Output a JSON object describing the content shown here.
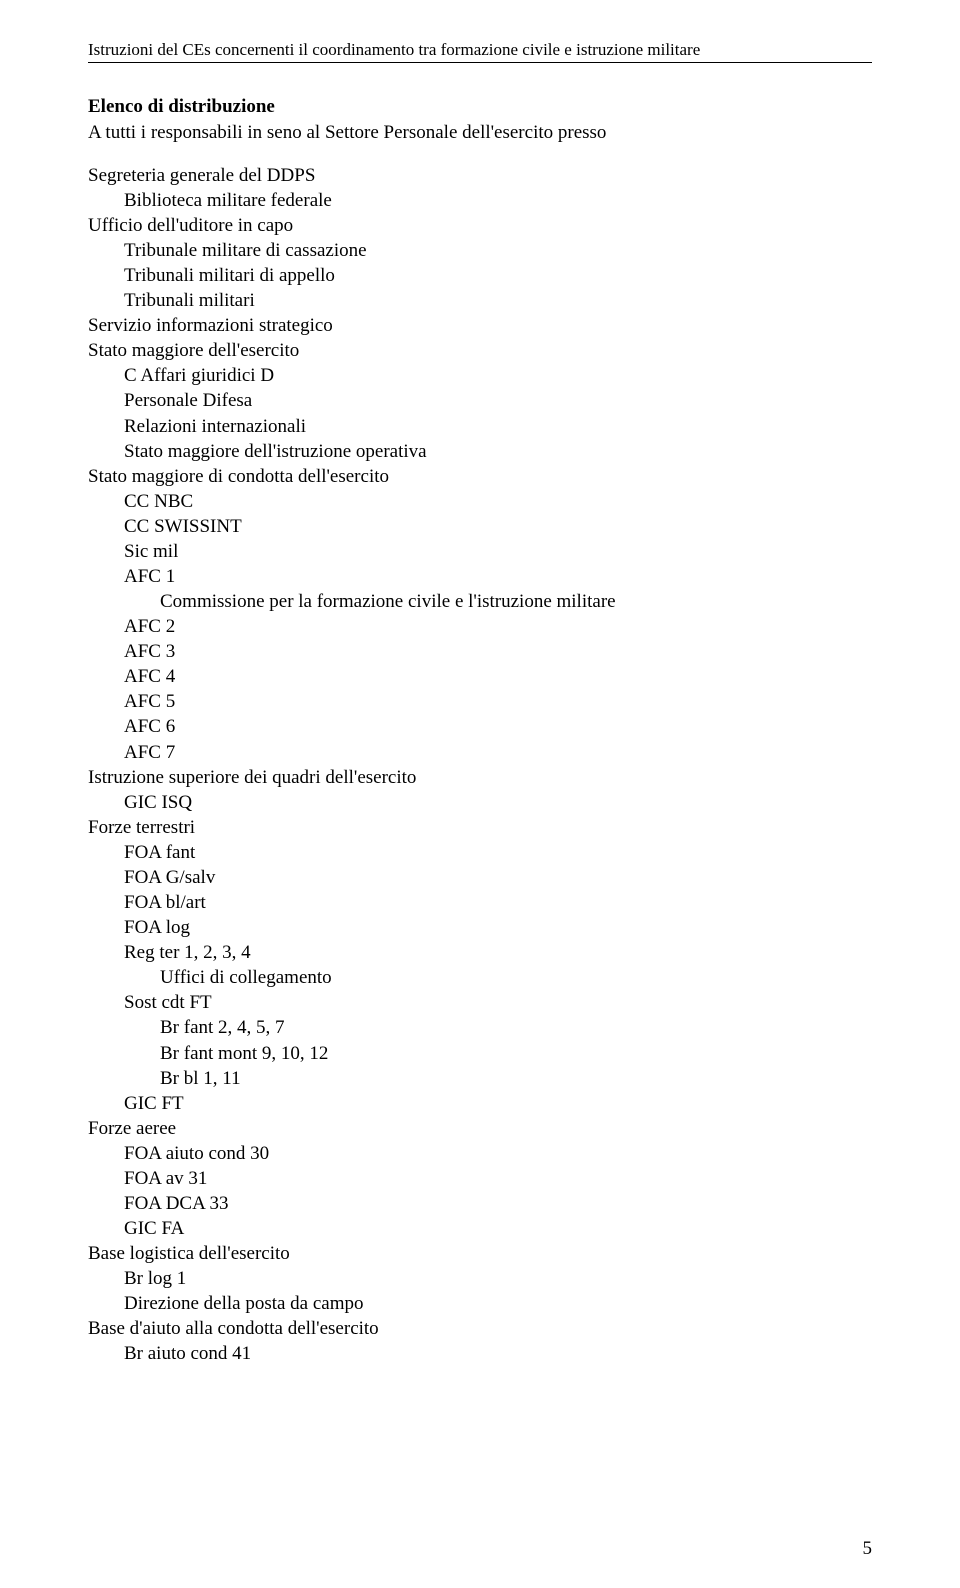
{
  "header": "Istruzioni del CEs concernenti il coordinamento tra formazione civile e istruzione militare",
  "title": "Elenco di distribuzione",
  "subtitle": "A tutti i responsabili in seno al Settore Personale dell'esercito presso",
  "lines": [
    {
      "text": "Segreteria generale del DDPS",
      "indent": 0
    },
    {
      "text": "Biblioteca militare federale",
      "indent": 1
    },
    {
      "text": "Ufficio dell'uditore in capo",
      "indent": 0
    },
    {
      "text": "Tribunale militare di cassazione",
      "indent": 1
    },
    {
      "text": "Tribunali militari di appello",
      "indent": 1
    },
    {
      "text": "Tribunali militari",
      "indent": 1
    },
    {
      "text": "Servizio informazioni strategico",
      "indent": 0
    },
    {
      "text": "Stato maggiore dell'esercito",
      "indent": 0
    },
    {
      "text": "C Affari giuridici D",
      "indent": 1
    },
    {
      "text": "Personale Difesa",
      "indent": 1
    },
    {
      "text": "Relazioni internazionali",
      "indent": 1
    },
    {
      "text": "Stato maggiore dell'istruzione operativa",
      "indent": 1
    },
    {
      "text": "Stato maggiore di condotta dell'esercito",
      "indent": 0
    },
    {
      "text": "CC NBC",
      "indent": 1
    },
    {
      "text": "CC SWISSINT",
      "indent": 1
    },
    {
      "text": "Sic mil",
      "indent": 1
    },
    {
      "text": "AFC 1",
      "indent": 1
    },
    {
      "text": "Commissione per la formazione civile e l'istruzione militare",
      "indent": 2
    },
    {
      "text": "AFC 2",
      "indent": 1
    },
    {
      "text": "AFC 3",
      "indent": 1
    },
    {
      "text": "AFC 4",
      "indent": 1
    },
    {
      "text": "AFC 5",
      "indent": 1
    },
    {
      "text": "AFC 6",
      "indent": 1
    },
    {
      "text": "AFC 7",
      "indent": 1
    },
    {
      "text": "Istruzione superiore dei quadri dell'esercito",
      "indent": 0
    },
    {
      "text": "GIC ISQ",
      "indent": 1
    },
    {
      "text": "Forze terrestri",
      "indent": 0
    },
    {
      "text": "FOA fant",
      "indent": 1
    },
    {
      "text": "FOA G/salv",
      "indent": 1
    },
    {
      "text": "FOA bl/art",
      "indent": 1
    },
    {
      "text": "FOA log",
      "indent": 1
    },
    {
      "text": "Reg ter 1, 2, 3, 4",
      "indent": 1
    },
    {
      "text": "Uffici di collegamento",
      "indent": 2
    },
    {
      "text": "Sost cdt FT",
      "indent": 1
    },
    {
      "text": "Br fant 2, 4, 5, 7",
      "indent": 2
    },
    {
      "text": "Br fant mont 9, 10, 12",
      "indent": 2
    },
    {
      "text": "Br bl 1, 11",
      "indent": 2
    },
    {
      "text": "GIC FT",
      "indent": 1
    },
    {
      "text": "Forze aeree",
      "indent": 0
    },
    {
      "text": "FOA aiuto cond 30",
      "indent": 1
    },
    {
      "text": "FOA av 31",
      "indent": 1
    },
    {
      "text": "FOA DCA 33",
      "indent": 1
    },
    {
      "text": "GIC FA",
      "indent": 1
    },
    {
      "text": "Base logistica dell'esercito",
      "indent": 0
    },
    {
      "text": "Br log 1",
      "indent": 1
    },
    {
      "text": "Direzione della posta da campo",
      "indent": 1
    },
    {
      "text": "Base d'aiuto alla condotta dell'esercito",
      "indent": 0
    },
    {
      "text": "Br aiuto cond 41",
      "indent": 1
    }
  ],
  "page_number": "5"
}
